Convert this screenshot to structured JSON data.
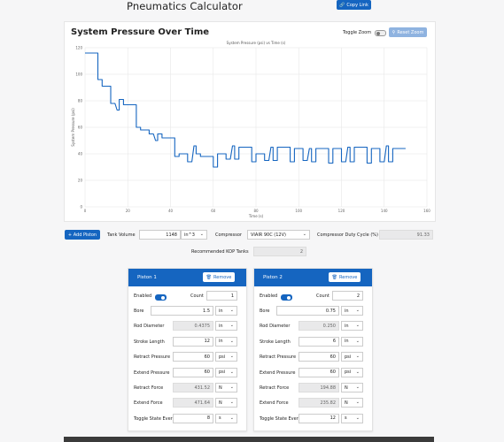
{
  "header": {
    "title": "Pneumatics Calculator",
    "copy_link": "Copy Link"
  },
  "chart_header": {
    "title": "System Pressure Over Time",
    "toggle_zoom": "Toggle Zoom",
    "reset_zoom": "Reset Zoom"
  },
  "chart_data": {
    "type": "line",
    "title": "System Pressure (psi) vs Time (s)",
    "xlabel": "Time (s)",
    "ylabel": "System Pressure (psi)",
    "xlim": [
      0,
      160
    ],
    "ylim": [
      0,
      120
    ],
    "xticks": [
      0,
      20,
      40,
      60,
      80,
      100,
      120,
      140,
      160
    ],
    "yticks": [
      0,
      20,
      40,
      60,
      80,
      100,
      120
    ],
    "grid": true,
    "color": "#1565c0",
    "series": [
      {
        "x": [
          0,
          6,
          6,
          8,
          8,
          12,
          12,
          14,
          15,
          16,
          16,
          18,
          18,
          24,
          24,
          26,
          26,
          30,
          30,
          32,
          33,
          34,
          34,
          36,
          36,
          42,
          42,
          44,
          44,
          48,
          48,
          50,
          51,
          52,
          52,
          54,
          54,
          60,
          60,
          62,
          62,
          66,
          66,
          68,
          69,
          70,
          70,
          72,
          72,
          78,
          78,
          80,
          80,
          84,
          84,
          86,
          87,
          88,
          88,
          90,
          90,
          96,
          96,
          98,
          98,
          102,
          102,
          104,
          105,
          106,
          106,
          108,
          108,
          114,
          114,
          116,
          116,
          120,
          120,
          122,
          123,
          124,
          124,
          126,
          126,
          132,
          132,
          134,
          134,
          138,
          138,
          140,
          141,
          142,
          142,
          144,
          144,
          150
        ],
        "y": [
          116,
          116,
          96,
          96,
          91,
          91,
          78,
          78,
          73,
          73,
          81,
          81,
          77,
          77,
          60,
          60,
          58,
          58,
          55,
          55,
          50,
          50,
          55,
          55,
          52,
          52,
          38,
          38,
          40,
          40,
          34,
          34,
          46,
          46,
          40,
          40,
          38,
          38,
          30,
          30,
          40,
          40,
          36,
          36,
          46,
          46,
          36,
          36,
          45,
          45,
          34,
          34,
          40,
          40,
          35,
          35,
          45,
          45,
          35,
          35,
          45,
          45,
          34,
          34,
          44,
          44,
          35,
          35,
          44,
          44,
          34,
          34,
          44,
          44,
          33,
          33,
          44,
          44,
          34,
          34,
          45,
          45,
          34,
          34,
          45,
          45,
          33,
          33,
          44,
          44,
          34,
          34,
          46,
          46,
          34,
          34,
          44,
          44
        ]
      }
    ]
  },
  "system": {
    "add_piston": "+ Add Piston",
    "tank_volume_label": "Tank Volume",
    "tank_volume_value": "1148",
    "tank_unit": "in^3",
    "compressor_label": "Compressor",
    "compressor_value": "VIAIR 90C (12V)",
    "duty_cycle_label": "Compressor Duty Cycle (%)",
    "duty_cycle_value": "91.33",
    "kop_label": "Recommended KOP Tanks",
    "kop_value": "2"
  },
  "pistons": [
    {
      "title": "Piston 1",
      "remove": "Remove",
      "enabled_label": "Enabled",
      "count_label": "Count",
      "count": "1",
      "bore_label": "Bore",
      "bore": "1.5",
      "bore_unit": "in",
      "rod_label": "Rod Diameter",
      "rod": "0.4375",
      "rod_unit": "in",
      "stroke_label": "Stroke Length",
      "stroke": "12",
      "stroke_unit": "in",
      "retract_p_label": "Retract Pressure",
      "retract_p": "60",
      "retract_p_unit": "psi",
      "extend_p_label": "Extend Pressure",
      "extend_p": "60",
      "extend_p_unit": "psi",
      "retract_f_label": "Retract Force",
      "retract_f": "431.52",
      "retract_f_unit": "N",
      "extend_f_label": "Extend Force",
      "extend_f": "471.64",
      "extend_f_unit": "N",
      "toggle_label": "Toggle State Every",
      "toggle": "8",
      "toggle_unit": "s"
    },
    {
      "title": "Piston 2",
      "remove": "Remove",
      "enabled_label": "Enabled",
      "count_label": "Count",
      "count": "2",
      "bore_label": "Bore",
      "bore": "0.75",
      "bore_unit": "in",
      "rod_label": "Rod Diameter",
      "rod": "0.250",
      "rod_unit": "in",
      "stroke_label": "Stroke Length",
      "stroke": "6",
      "stroke_unit": "in",
      "retract_p_label": "Retract Pressure",
      "retract_p": "60",
      "retract_p_unit": "psi",
      "extend_p_label": "Extend Pressure",
      "extend_p": "60",
      "extend_p_unit": "psi",
      "retract_f_label": "Retract Force",
      "retract_f": "194.88",
      "retract_f_unit": "N",
      "extend_f_label": "Extend Force",
      "extend_f": "235.82",
      "extend_f_unit": "N",
      "toggle_label": "Toggle State Every",
      "toggle": "12",
      "toggle_unit": "s"
    }
  ]
}
